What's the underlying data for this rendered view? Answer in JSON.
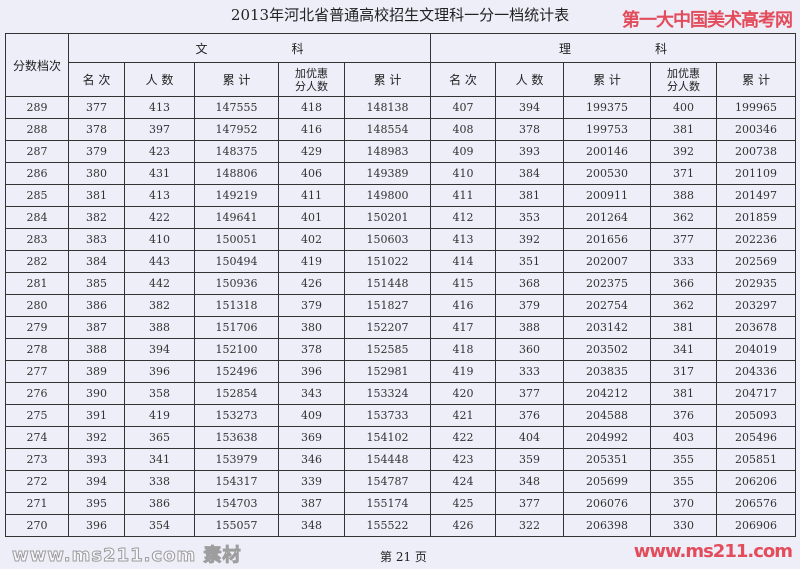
{
  "title": "2013年河北省普通高校招生文理科一分一档统计表",
  "watermarks": {
    "site_name": "第一大中国美术高考网",
    "site_url": "www.ms211.com",
    "center": "www.ms211.com 素材"
  },
  "headers": {
    "score": "分数档次",
    "wen": "文　　　　　　　科",
    "li": "理　　　　　　　科",
    "sub": [
      "名 次",
      "人 数",
      "累 计",
      "加优惠\n分人数",
      "累 计",
      "名 次",
      "人 数",
      "累 计",
      "加优惠\n分人数",
      "累 计"
    ]
  },
  "rows": [
    [
      "289",
      "377",
      "413",
      "147555",
      "418",
      "148138",
      "407",
      "394",
      "199375",
      "400",
      "199965"
    ],
    [
      "288",
      "378",
      "397",
      "147952",
      "416",
      "148554",
      "408",
      "378",
      "199753",
      "381",
      "200346"
    ],
    [
      "287",
      "379",
      "423",
      "148375",
      "429",
      "148983",
      "409",
      "393",
      "200146",
      "392",
      "200738"
    ],
    [
      "286",
      "380",
      "431",
      "148806",
      "406",
      "149389",
      "410",
      "384",
      "200530",
      "371",
      "201109"
    ],
    [
      "285",
      "381",
      "413",
      "149219",
      "411",
      "149800",
      "411",
      "381",
      "200911",
      "388",
      "201497"
    ],
    [
      "284",
      "382",
      "422",
      "149641",
      "401",
      "150201",
      "412",
      "353",
      "201264",
      "362",
      "201859"
    ],
    [
      "283",
      "383",
      "410",
      "150051",
      "402",
      "150603",
      "413",
      "392",
      "201656",
      "377",
      "202236"
    ],
    [
      "282",
      "384",
      "443",
      "150494",
      "419",
      "151022",
      "414",
      "351",
      "202007",
      "333",
      "202569"
    ],
    [
      "281",
      "385",
      "442",
      "150936",
      "426",
      "151448",
      "415",
      "368",
      "202375",
      "366",
      "202935"
    ],
    [
      "280",
      "386",
      "382",
      "151318",
      "379",
      "151827",
      "416",
      "379",
      "202754",
      "362",
      "203297"
    ],
    [
      "279",
      "387",
      "388",
      "151706",
      "380",
      "152207",
      "417",
      "388",
      "203142",
      "381",
      "203678"
    ],
    [
      "278",
      "388",
      "394",
      "152100",
      "378",
      "152585",
      "418",
      "360",
      "203502",
      "341",
      "204019"
    ],
    [
      "277",
      "389",
      "396",
      "152496",
      "396",
      "152981",
      "419",
      "333",
      "203835",
      "317",
      "204336"
    ],
    [
      "276",
      "390",
      "358",
      "152854",
      "343",
      "153324",
      "420",
      "377",
      "204212",
      "381",
      "204717"
    ],
    [
      "275",
      "391",
      "419",
      "153273",
      "409",
      "153733",
      "421",
      "376",
      "204588",
      "376",
      "205093"
    ],
    [
      "274",
      "392",
      "365",
      "153638",
      "369",
      "154102",
      "422",
      "404",
      "204992",
      "403",
      "205496"
    ],
    [
      "273",
      "393",
      "341",
      "153979",
      "346",
      "154448",
      "423",
      "359",
      "205351",
      "355",
      "205851"
    ],
    [
      "272",
      "394",
      "338",
      "154317",
      "339",
      "154787",
      "424",
      "348",
      "205699",
      "355",
      "206206"
    ],
    [
      "271",
      "395",
      "386",
      "154703",
      "387",
      "155174",
      "425",
      "377",
      "206076",
      "370",
      "206576"
    ],
    [
      "270",
      "396",
      "354",
      "155057",
      "348",
      "155522",
      "426",
      "322",
      "206398",
      "330",
      "206906"
    ]
  ],
  "footer": {
    "page": "第 21 页"
  }
}
